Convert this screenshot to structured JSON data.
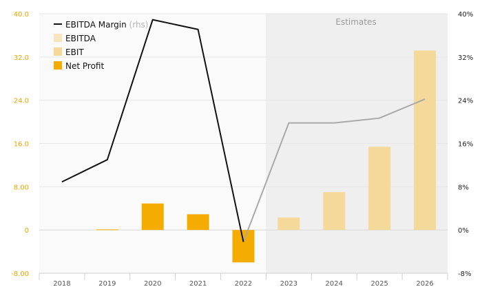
{
  "chart_data": {
    "type": "bar",
    "categories": [
      "2018",
      "2019",
      "2020",
      "2021",
      "2022",
      "2023",
      "2024",
      "2025",
      "2026"
    ],
    "estimates_label": "Estimates",
    "estimates_from": "2023",
    "y_left": {
      "min": -8,
      "max": 40,
      "ticks": [
        "-8.00",
        "0",
        "8.00",
        "16.0",
        "24.0",
        "32.0",
        "40.0"
      ],
      "tick_values": [
        -8,
        0,
        8,
        16,
        24,
        32,
        40
      ]
    },
    "y_right": {
      "min": -8,
      "max": 40,
      "ticks": [
        "-8%",
        "0%",
        "8%",
        "16%",
        "24%",
        "32%",
        "40%"
      ],
      "tick_values": [
        -8,
        0,
        8,
        16,
        24,
        32,
        40
      ]
    },
    "series": [
      {
        "name": "EBITDA Margin",
        "suffix": "(rhs)",
        "kind": "line",
        "axis": "right",
        "color": "#111111",
        "estimate_color": "#a9a9a9",
        "values": [
          8.9,
          13.0,
          38.9,
          37.1,
          -2.2,
          19.8,
          19.8,
          20.7,
          24.2
        ]
      },
      {
        "name": "EBITDA",
        "kind": "bar",
        "color": "#f8e5bd",
        "values": [
          null,
          null,
          null,
          null,
          null,
          null,
          null,
          null,
          null
        ]
      },
      {
        "name": "EBIT",
        "kind": "bar",
        "color": "#f4d99a",
        "values": [
          null,
          null,
          null,
          null,
          null,
          2.3,
          7.0,
          15.4,
          33.2
        ]
      },
      {
        "name": "Net Profit",
        "kind": "bar",
        "color": "#f5ac00",
        "values": [
          null,
          0.1,
          4.9,
          2.9,
          -6.0,
          null,
          null,
          null,
          null
        ]
      }
    ],
    "legend": "top-left",
    "grid": true
  }
}
